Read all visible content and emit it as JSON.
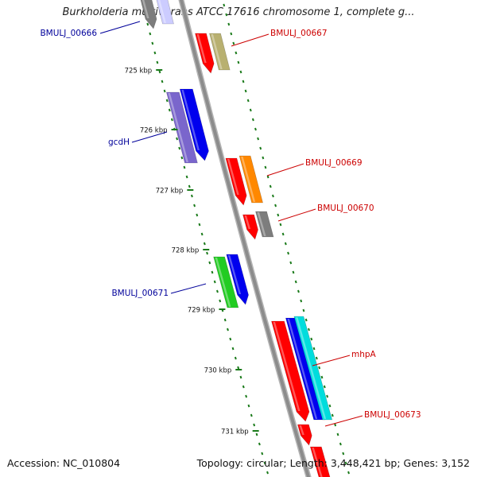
{
  "title": "Burkholderia multivorans ATCC 17616 chromosome 1, complete g...",
  "footer": {
    "accession": "Accession: NC_010804",
    "summary": "Topology: circular; Length: 3,448,421 bp; Genes: 3,152"
  },
  "ruler": {
    "ticks": [
      "725 kbp",
      "726 kbp",
      "727 kbp",
      "728 kbp",
      "729 kbp",
      "730 kbp",
      "731 kbp"
    ]
  },
  "genes": [
    {
      "label": "BMULJ_00666",
      "strand": "minus",
      "color": "#7d7d7d",
      "label_color": "#00009a"
    },
    {
      "label": "BMULJ_00667",
      "strand": "plus",
      "color": "#ff0000",
      "label_color": "#cc0000"
    },
    {
      "label": "gcdH",
      "strand": "minus",
      "color": "#0000ee",
      "label_color": "#00009a"
    },
    {
      "label": "BMULJ_00669",
      "strand": "plus",
      "color": "#ff0000",
      "label_color": "#cc0000"
    },
    {
      "label": "BMULJ_00670",
      "strand": "plus",
      "color": "#ff0000",
      "label_color": "#cc0000"
    },
    {
      "label": "BMULJ_00671",
      "strand": "minus",
      "color": "#0000ee",
      "label_color": "#00009a"
    },
    {
      "label": "mhpA",
      "strand": "plus",
      "color": "#ff0000",
      "label_color": "#cc0000"
    },
    {
      "label": "BMULJ_00673",
      "strand": "plus",
      "color": "#ff0000",
      "label_color": "#cc0000"
    }
  ],
  "colors": {
    "backbone": "#8c8c8c",
    "dots": "#1a7a1a",
    "grey": "#7d7d7d",
    "olive": "#b8b070",
    "purple": "#7a66cc",
    "orange": "#ff8800",
    "green": "#22cc22",
    "cyan": "#00dddd",
    "blue": "#0000ee",
    "red": "#ff0000"
  }
}
